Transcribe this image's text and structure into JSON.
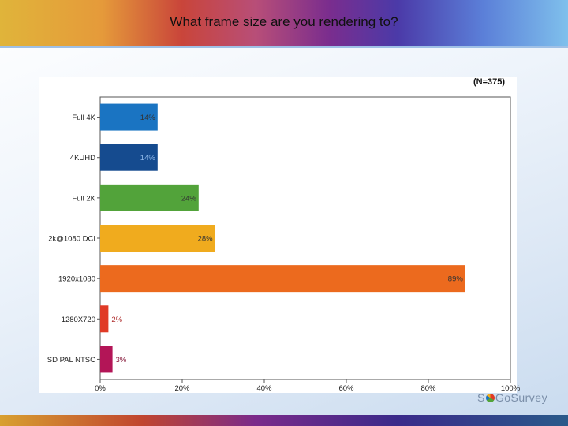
{
  "slide": {
    "title": "What frame size are you rendering to?",
    "logo_text_left": "S",
    "logo_text_right": "GoSurvey"
  },
  "chart_data": {
    "type": "bar",
    "orientation": "horizontal",
    "annotation": "(N=375)",
    "categories": [
      "Full 4K",
      "4KUHD",
      "Full 2K",
      "2k@1080 DCI",
      "1920x1080",
      "1280X720",
      "SD PAL NTSC"
    ],
    "values": [
      14,
      14,
      24,
      28,
      89,
      2,
      3
    ],
    "data_labels": [
      "14%",
      "14%",
      "24%",
      "28%",
      "89%",
      "2%",
      "3%"
    ],
    "colors": [
      "#1a74c2",
      "#154b8f",
      "#52a33a",
      "#f0ab1e",
      "#ec6a1e",
      "#e03a26",
      "#b31557"
    ],
    "label_colors": [
      "#333333",
      "#8fb8e8",
      "#333333",
      "#333333",
      "#333333",
      "#b03030",
      "#8a2040"
    ],
    "xlim": [
      0,
      100
    ],
    "xticks": [
      "0%",
      "20%",
      "40%",
      "60%",
      "80%",
      "100%"
    ],
    "xtick_values": [
      0,
      20,
      40,
      60,
      80,
      100
    ],
    "grid": false
  }
}
